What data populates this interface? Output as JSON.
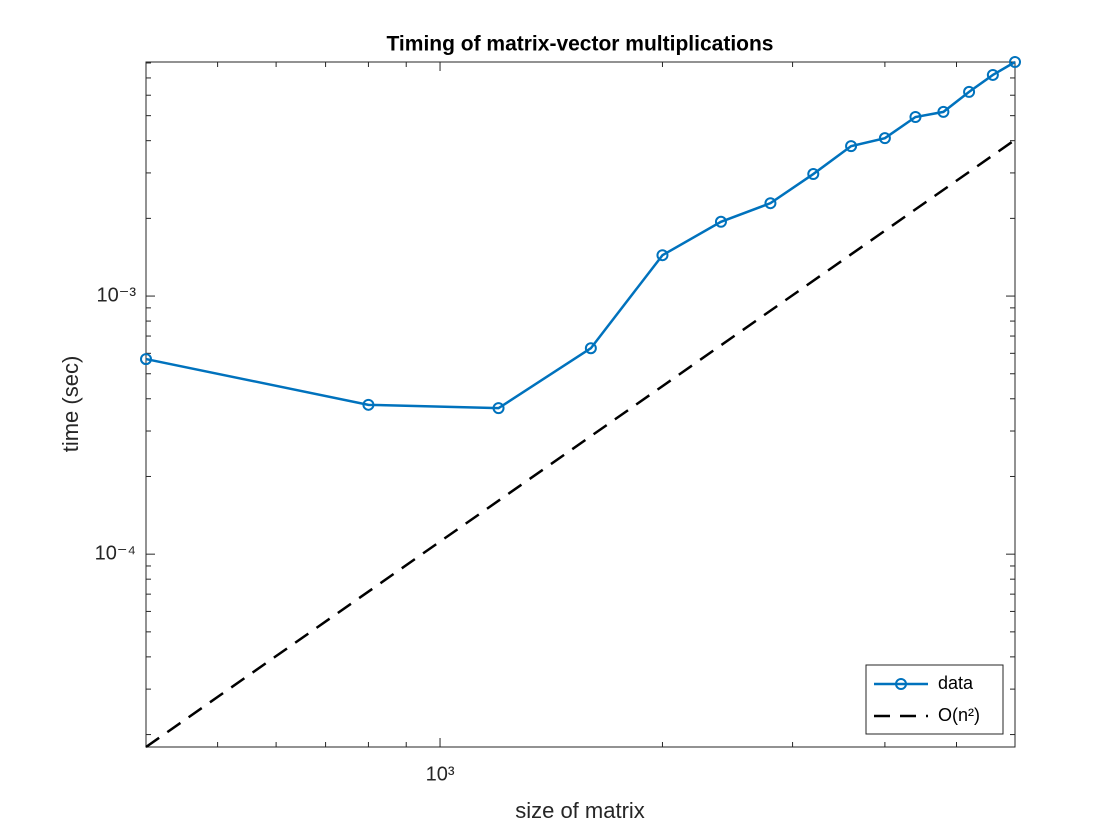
{
  "chart_data": {
    "type": "line",
    "title": "Timing of matrix-vector multiplications",
    "xlabel": "size of matrix",
    "ylabel": "time (sec)",
    "xscale": "log",
    "yscale": "log",
    "xlim": [
      400,
      6000
    ],
    "ylim": [
      1.79e-05,
      0.00807
    ],
    "xticks": [
      {
        "value": 1000,
        "label": "10³"
      }
    ],
    "yticks": [
      {
        "value": 0.0001,
        "label": "10⁻⁴"
      },
      {
        "value": 0.001,
        "label": "10⁻³"
      }
    ],
    "xminorticks": [
      400,
      500,
      600,
      700,
      800,
      900,
      2000,
      3000,
      4000,
      5000,
      6000
    ],
    "yminorticks": [
      2e-05,
      3e-05,
      4e-05,
      5e-05,
      6e-05,
      7e-05,
      8e-05,
      9e-05,
      0.0002,
      0.0003,
      0.0004,
      0.0005,
      0.0006,
      0.0007,
      0.0008,
      0.0009,
      0.002,
      0.003,
      0.004,
      0.005,
      0.006,
      0.007,
      0.008
    ],
    "legend": "southeast",
    "series": [
      {
        "name": "data",
        "color": "#0072bd",
        "marker": "circle",
        "dash": false,
        "x": [
          400,
          800,
          1200,
          1600,
          2000,
          2400,
          2800,
          3200,
          3600,
          4000,
          4400,
          4800,
          5200,
          5600,
          6000
        ],
        "values": [
          0.00057,
          0.000379,
          0.000368,
          0.000628,
          0.00144,
          0.00194,
          0.00229,
          0.00297,
          0.00381,
          0.00409,
          0.00494,
          0.00517,
          0.00618,
          0.00719,
          0.00807
        ]
      },
      {
        "name": "O(n²)",
        "color": "#000000",
        "marker": null,
        "dash": true,
        "x": [
          400,
          6000
        ],
        "values": [
          1.79e-05,
          0.00403
        ]
      }
    ]
  }
}
